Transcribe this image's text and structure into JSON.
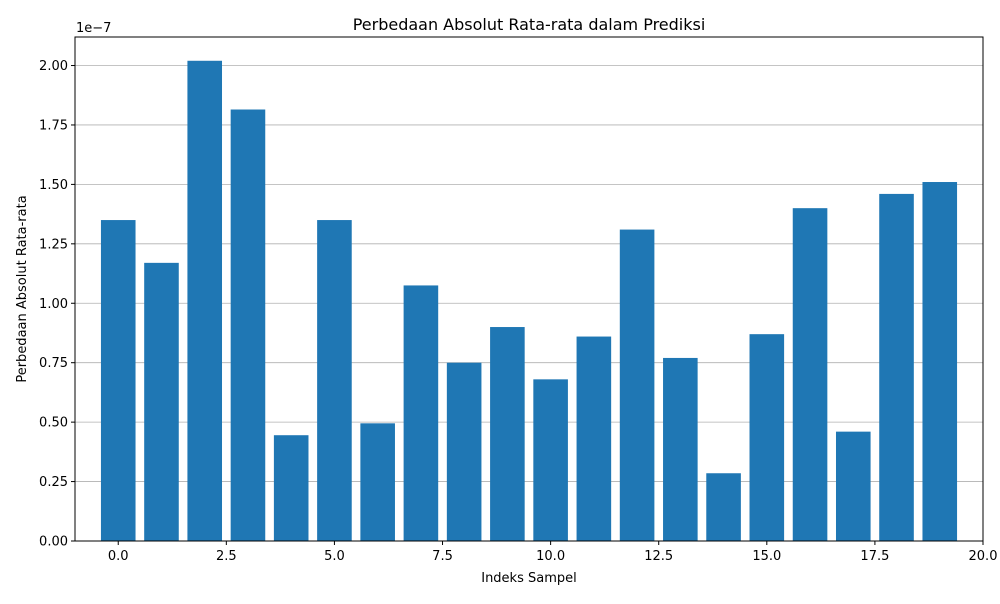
{
  "chart_data": {
    "type": "bar",
    "title": "Perbedaan Absolut Rata-rata dalam Prediksi",
    "xlabel": "Indeks Sampel",
    "ylabel": "Perbedaan Absolut Rata-rata",
    "y_offset_label": "1e−7",
    "x": [
      0,
      1,
      2,
      3,
      4,
      5,
      6,
      7,
      8,
      9,
      10,
      11,
      12,
      13,
      14,
      15,
      16,
      17,
      18,
      19
    ],
    "values": [
      1.35,
      1.17,
      2.02,
      1.815,
      0.445,
      1.35,
      0.495,
      1.075,
      0.75,
      0.9,
      0.68,
      0.86,
      1.31,
      0.77,
      0.285,
      0.87,
      1.4,
      0.46,
      1.46,
      1.51
    ],
    "value_scale": "1e-7",
    "xlim": [
      -1.0,
      20.0
    ],
    "ylim": [
      0,
      2.12
    ],
    "x_ticks": [
      0.0,
      2.5,
      5.0,
      7.5,
      10.0,
      12.5,
      15.0,
      17.5,
      20.0
    ],
    "x_tick_labels": [
      "0.0",
      "2.5",
      "5.0",
      "7.5",
      "10.0",
      "12.5",
      "15.0",
      "17.5",
      "20.0"
    ],
    "y_ticks": [
      0,
      0.25,
      0.5,
      0.75,
      1.0,
      1.25,
      1.5,
      1.75,
      2.0
    ],
    "y_tick_labels": [
      "0.00",
      "0.25",
      "0.50",
      "0.75",
      "1.00",
      "1.25",
      "1.50",
      "1.75",
      "2.00"
    ],
    "grid": "y",
    "bar_color": "#1f77b4",
    "grid_color": "#b0b0b0"
  }
}
